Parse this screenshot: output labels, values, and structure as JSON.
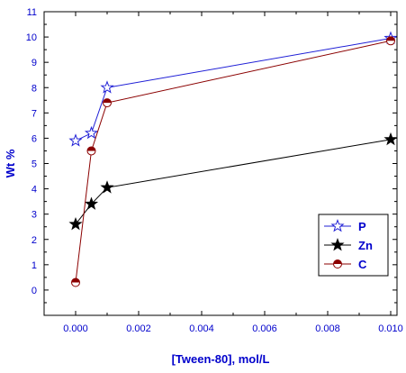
{
  "chart_data": {
    "type": "line",
    "xlabel": "[Tween-80], mol/L",
    "ylabel": "Wt %",
    "xlim": [
      -0.001,
      0.0102
    ],
    "ylim": [
      -1,
      11
    ],
    "x_ticks": [
      "0.000",
      "0.002",
      "0.004",
      "0.006",
      "0.008",
      "0.010"
    ],
    "x_tick_values": [
      0.0,
      0.002,
      0.004,
      0.006,
      0.008,
      0.01
    ],
    "y_ticks": [
      "0",
      "1",
      "2",
      "3",
      "4",
      "5",
      "6",
      "7",
      "8",
      "9",
      "10",
      "11"
    ],
    "y_tick_values": [
      0,
      1,
      2,
      3,
      4,
      5,
      6,
      7,
      8,
      9,
      10,
      11
    ],
    "grid": false,
    "legend_position": "bottom-right",
    "series": [
      {
        "name": "P",
        "marker": "star-open",
        "color": "#1f1fd6",
        "x": [
          0.0,
          0.0005,
          0.001,
          0.01
        ],
        "y": [
          5.9,
          6.2,
          8.0,
          9.95
        ]
      },
      {
        "name": "Zn",
        "marker": "star-filled",
        "color": "#000000",
        "x": [
          0.0,
          0.0005,
          0.001,
          0.01
        ],
        "y": [
          2.6,
          3.4,
          4.05,
          5.95
        ]
      },
      {
        "name": "C",
        "marker": "circle-half",
        "color": "#8b0000",
        "x": [
          0.0,
          0.0005,
          0.001,
          0.01
        ],
        "y": [
          0.3,
          5.5,
          7.4,
          9.85
        ]
      }
    ]
  }
}
